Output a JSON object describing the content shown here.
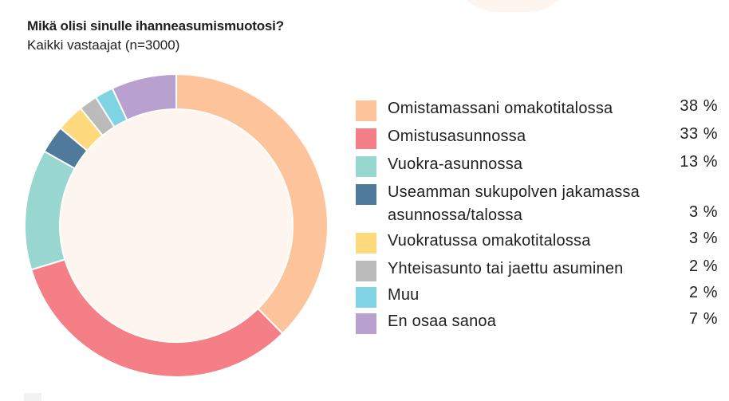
{
  "title": "Mikä olisi sinulle ihanneasumismuotosi?",
  "subtitle": "Kaikki vastaajat (n=3000)",
  "chart_data": {
    "type": "pie",
    "donut": true,
    "title": "Mikä olisi sinulle ihanneasumismuotosi?",
    "subtitle": "Kaikki vastaajat (n=3000)",
    "legend_placement": "right",
    "series": [
      {
        "name": "Omistamassani omakotitalossa",
        "value": 38,
        "value_label": "38 %",
        "color": "#fdc49c"
      },
      {
        "name": "Omistusasunnossa",
        "value": 33,
        "value_label": "33 %",
        "color": "#f47f86"
      },
      {
        "name": "Vuokra-asunnossa",
        "value": 13,
        "value_label": "13 %",
        "color": "#97d7cf"
      },
      {
        "name": "Useamman sukupolven jakamassa asunnossa/talossa",
        "value": 3,
        "value_label": "3 %",
        "color": "#4f7a9c"
      },
      {
        "name": "Vuokratussa omakotitalossa",
        "value": 3,
        "value_label": "3 %",
        "color": "#fed97d"
      },
      {
        "name": "Yhteisasunto tai jaettu asuminen",
        "value": 2,
        "value_label": "2 %",
        "color": "#bbbbbb"
      },
      {
        "name": "Muu",
        "value": 2,
        "value_label": "2 %",
        "color": "#7fd3e2"
      },
      {
        "name": "En osaa sanoa",
        "value": 7,
        "value_label": "7 %",
        "color": "#b8a0cf"
      }
    ],
    "center_color": "#fdf5ee",
    "separator_color": "#ffffff"
  }
}
